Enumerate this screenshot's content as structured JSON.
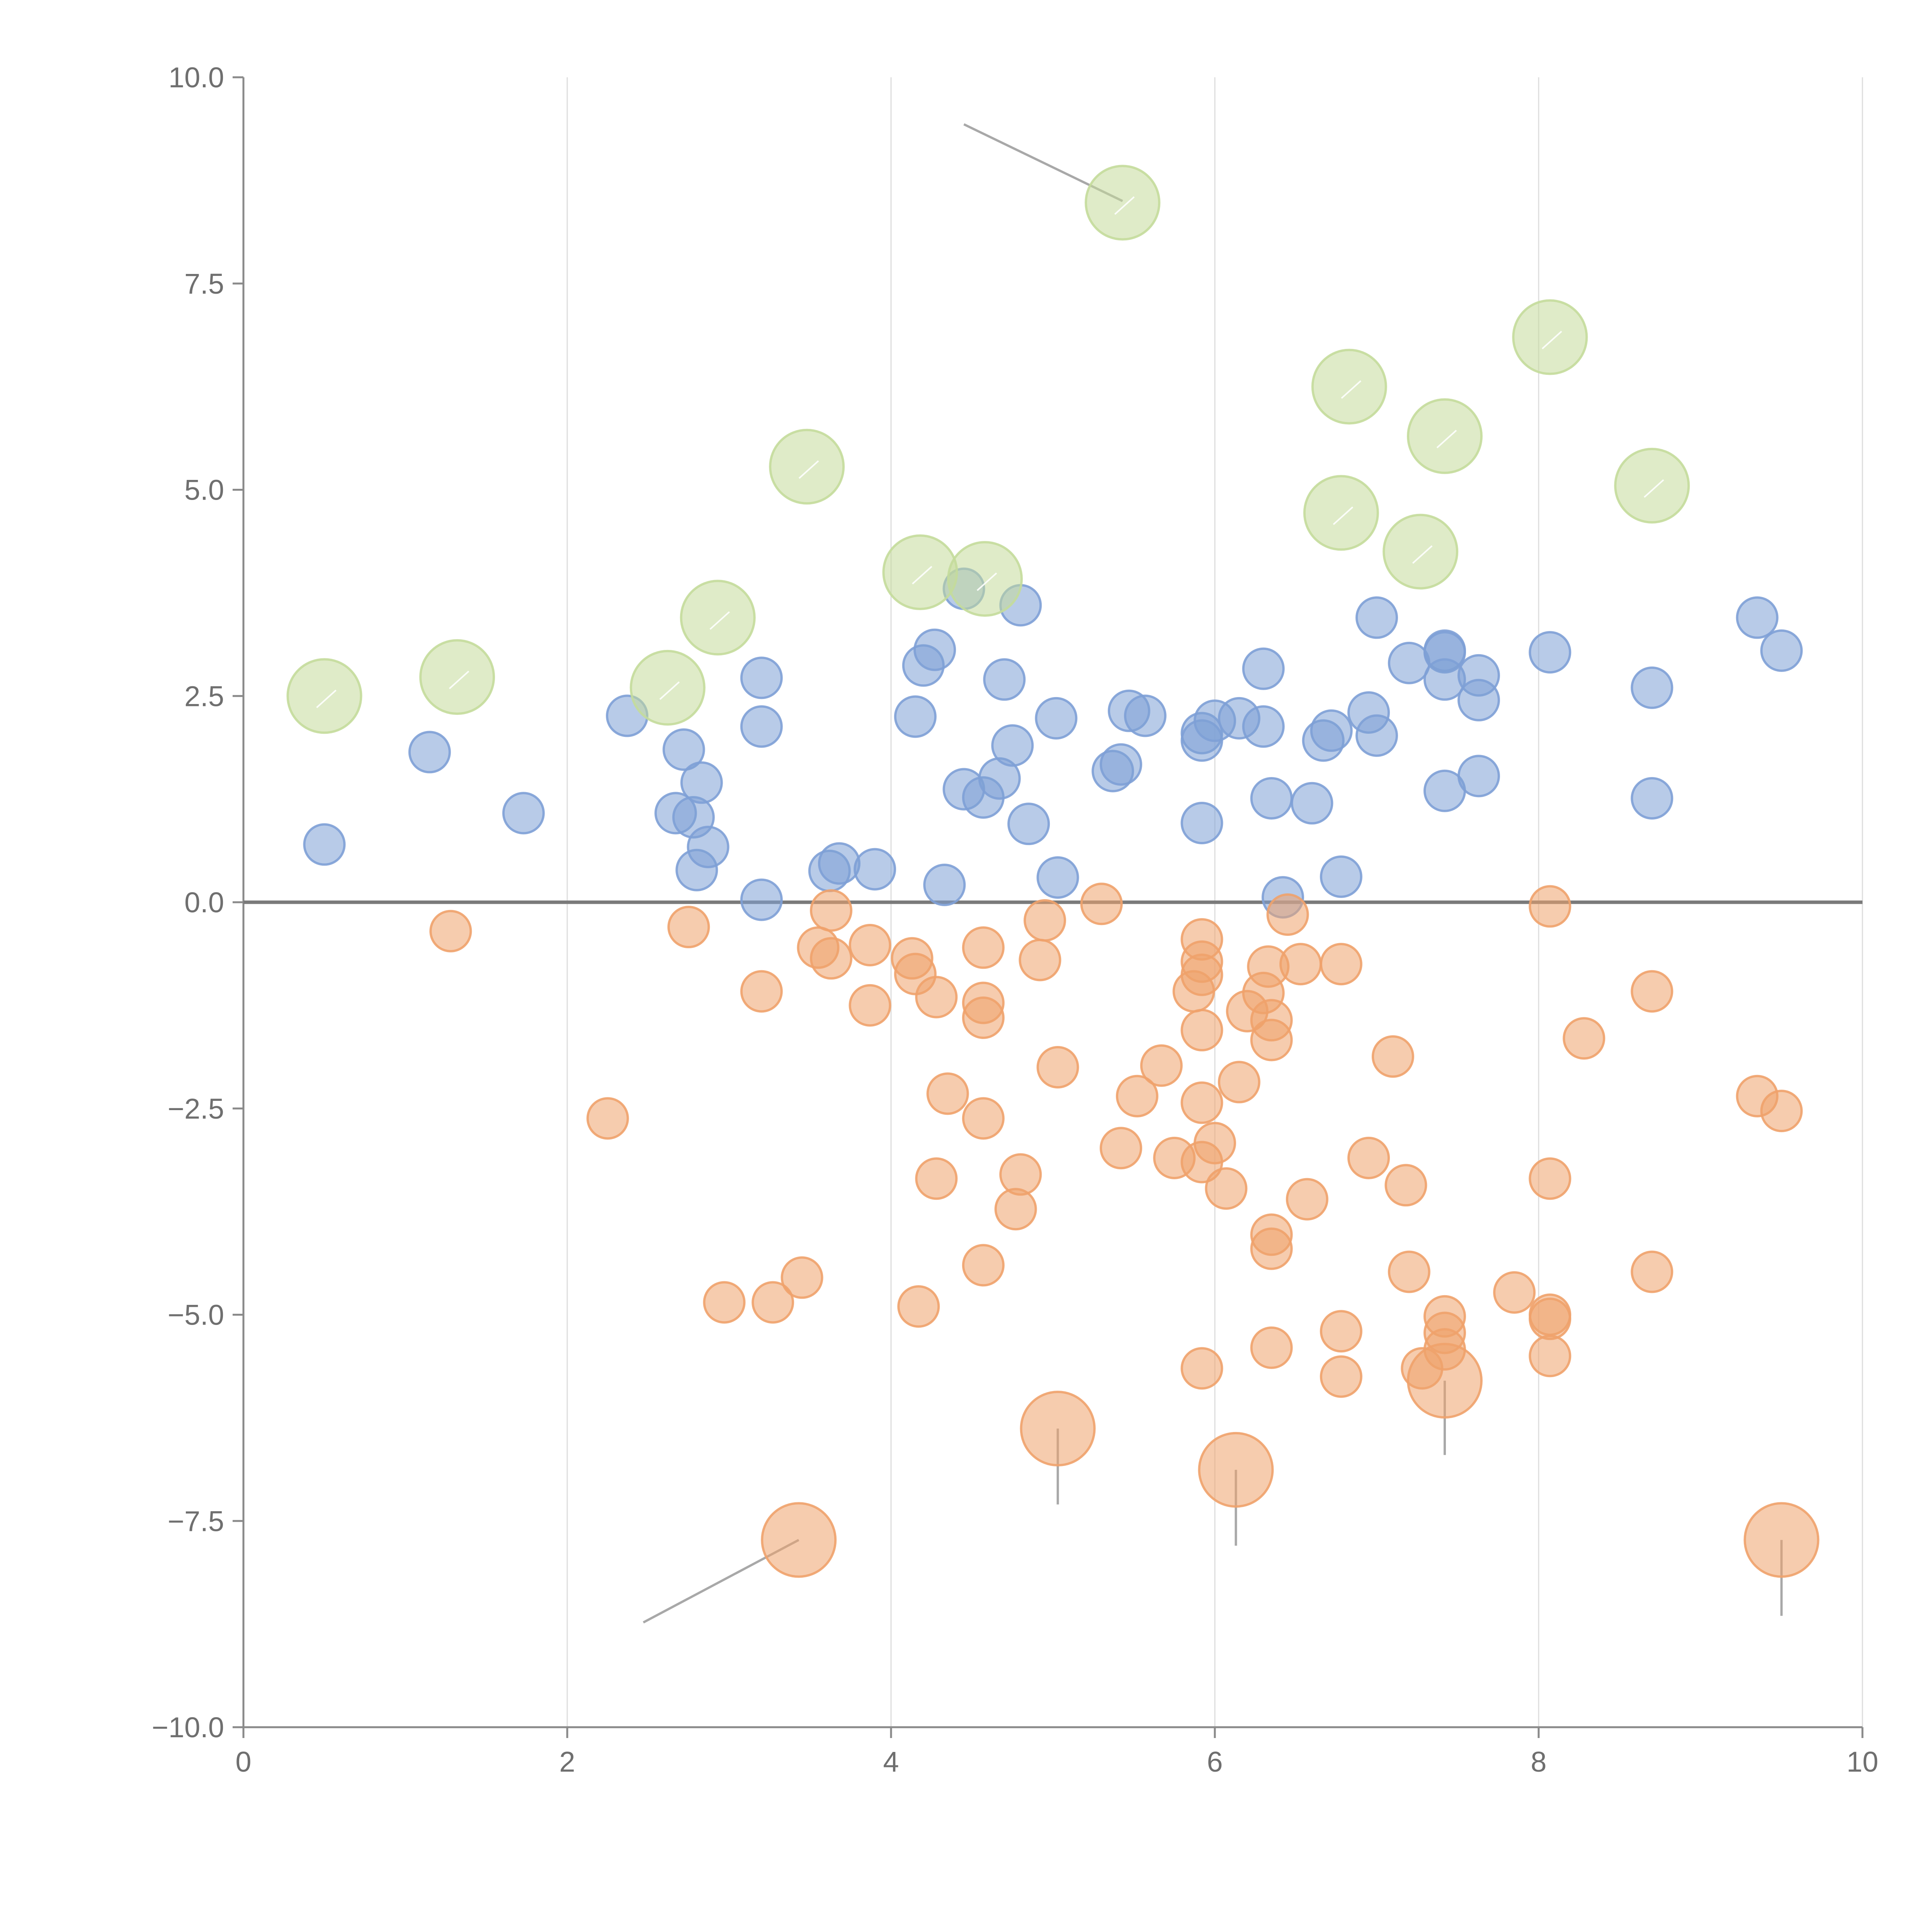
{
  "chart_data": {
    "type": "scatter",
    "title": "",
    "xlabel": "",
    "ylabel": "",
    "xlim": [
      0,
      10
    ],
    "ylim": [
      -10,
      10
    ],
    "x_ticks": [
      0,
      2,
      4,
      6,
      8,
      10
    ],
    "x_tick_labels": [
      "0",
      "2",
      "4",
      "6",
      "8",
      "10"
    ],
    "y_ticks": [
      -10,
      -7.5,
      -5,
      -2.5,
      0,
      2.5,
      5,
      7.5,
      10
    ],
    "y_tick_labels": [
      "−10.0",
      "−7.5",
      "−5.0",
      "−2.5",
      "0.0",
      "2.5",
      "5.0",
      "7.5",
      "10.0"
    ],
    "vertical_grid": true,
    "reference_line_y": 0,
    "series": [
      {
        "name": "blue",
        "color": "#7ea0d6",
        "marker_size": "small",
        "points": [
          [
            0.5,
            0.7
          ],
          [
            1.15,
            1.82
          ],
          [
            1.73,
            1.08
          ],
          [
            2.37,
            2.26
          ],
          [
            2.67,
            1.08
          ],
          [
            2.72,
            1.85
          ],
          [
            2.78,
            1.03
          ],
          [
            2.8,
            0.39
          ],
          [
            2.83,
            1.45
          ],
          [
            2.87,
            0.67
          ],
          [
            3.2,
            2.72
          ],
          [
            3.2,
            2.13
          ],
          [
            3.2,
            0.03
          ],
          [
            3.62,
            0.38
          ],
          [
            3.68,
            0.47
          ],
          [
            3.9,
            0.4
          ],
          [
            4.15,
            2.25
          ],
          [
            4.2,
            2.87
          ],
          [
            4.27,
            3.06
          ],
          [
            4.33,
            0.21
          ],
          [
            4.45,
            3.8
          ],
          [
            4.45,
            1.37
          ],
          [
            4.57,
            1.27
          ],
          [
            4.67,
            1.5
          ],
          [
            4.7,
            2.7
          ],
          [
            4.75,
            1.9
          ],
          [
            4.8,
            3.6
          ],
          [
            4.85,
            0.95
          ],
          [
            5.02,
            2.23
          ],
          [
            5.03,
            0.3
          ],
          [
            5.37,
            1.59
          ],
          [
            5.42,
            1.67
          ],
          [
            5.47,
            2.32
          ],
          [
            5.57,
            2.26
          ],
          [
            5.92,
            2.05
          ],
          [
            5.92,
            1.96
          ],
          [
            5.92,
            0.96
          ],
          [
            6.0,
            2.2
          ],
          [
            6.15,
            2.23
          ],
          [
            6.3,
            2.83
          ],
          [
            6.3,
            2.13
          ],
          [
            6.35,
            1.26
          ],
          [
            6.42,
            0.06
          ],
          [
            6.6,
            1.2
          ],
          [
            6.67,
            1.96
          ],
          [
            6.72,
            2.08
          ],
          [
            6.78,
            0.31
          ],
          [
            6.95,
            2.3
          ],
          [
            7.0,
            2.02
          ],
          [
            7.0,
            3.45
          ],
          [
            7.2,
            2.9
          ],
          [
            7.42,
            3.05
          ],
          [
            7.42,
            3.03
          ],
          [
            7.42,
            2.7
          ],
          [
            7.42,
            1.35
          ],
          [
            7.63,
            2.75
          ],
          [
            7.63,
            2.45
          ],
          [
            7.63,
            1.53
          ],
          [
            8.07,
            3.03
          ],
          [
            8.7,
            2.6
          ],
          [
            8.7,
            1.26
          ],
          [
            9.35,
            3.45
          ],
          [
            9.5,
            3.05
          ]
        ]
      },
      {
        "name": "orange",
        "color": "#efa26c",
        "marker_size": "small",
        "points": [
          [
            1.28,
            -0.35
          ],
          [
            2.25,
            -2.62
          ],
          [
            2.75,
            -0.3
          ],
          [
            2.97,
            -4.85
          ],
          [
            3.2,
            -1.08
          ],
          [
            3.27,
            -4.85
          ],
          [
            3.45,
            -4.55
          ],
          [
            3.55,
            -0.55
          ],
          [
            3.63,
            -0.68
          ],
          [
            3.63,
            -0.1
          ],
          [
            3.87,
            -0.52
          ],
          [
            3.87,
            -1.25
          ],
          [
            4.13,
            -0.68
          ],
          [
            4.15,
            -0.87
          ],
          [
            4.17,
            -4.9
          ],
          [
            4.28,
            -1.15
          ],
          [
            4.28,
            -3.35
          ],
          [
            4.35,
            -2.32
          ],
          [
            4.57,
            -0.55
          ],
          [
            4.57,
            -1.22
          ],
          [
            4.57,
            -1.4
          ],
          [
            4.57,
            -2.62
          ],
          [
            4.57,
            -4.4
          ],
          [
            4.77,
            -3.72
          ],
          [
            4.8,
            -3.3
          ],
          [
            4.92,
            -0.7
          ],
          [
            4.95,
            -0.22
          ],
          [
            5.03,
            -2.0
          ],
          [
            5.3,
            -0.02
          ],
          [
            5.42,
            -2.98
          ],
          [
            5.52,
            -2.35
          ],
          [
            5.67,
            -1.98
          ],
          [
            5.75,
            -3.1
          ],
          [
            5.87,
            -1.08
          ],
          [
            5.92,
            -0.45
          ],
          [
            5.92,
            -0.72
          ],
          [
            5.92,
            -0.88
          ],
          [
            5.92,
            -1.55
          ],
          [
            5.92,
            -2.43
          ],
          [
            5.92,
            -3.15
          ],
          [
            5.92,
            -5.65
          ],
          [
            6.0,
            -2.92
          ],
          [
            6.07,
            -3.47
          ],
          [
            6.15,
            -2.18
          ],
          [
            6.2,
            -1.32
          ],
          [
            6.3,
            -1.1
          ],
          [
            6.33,
            -0.78
          ],
          [
            6.35,
            -1.43
          ],
          [
            6.35,
            -1.67
          ],
          [
            6.35,
            -4.03
          ],
          [
            6.35,
            -4.2
          ],
          [
            6.35,
            -5.4
          ],
          [
            6.45,
            -0.15
          ],
          [
            6.53,
            -0.75
          ],
          [
            6.57,
            -3.6
          ],
          [
            6.78,
            -0.75
          ],
          [
            6.78,
            -5.2
          ],
          [
            6.78,
            -5.75
          ],
          [
            6.95,
            -3.1
          ],
          [
            7.1,
            -1.87
          ],
          [
            7.18,
            -3.43
          ],
          [
            7.2,
            -4.48
          ],
          [
            7.28,
            -5.65
          ],
          [
            7.42,
            -5.02
          ],
          [
            7.42,
            -5.22
          ],
          [
            7.42,
            -5.42
          ],
          [
            7.85,
            -4.73
          ],
          [
            8.07,
            -0.05
          ],
          [
            8.07,
            -3.35
          ],
          [
            8.07,
            -5.0
          ],
          [
            8.07,
            -5.05
          ],
          [
            8.07,
            -5.5
          ],
          [
            8.28,
            -1.65
          ],
          [
            8.7,
            -1.08
          ],
          [
            8.7,
            -4.48
          ],
          [
            9.35,
            -2.35
          ],
          [
            9.5,
            -2.53
          ]
        ]
      },
      {
        "name": "green",
        "color": "#c4db9b",
        "marker_size": "large",
        "points": [
          [
            0.5,
            2.5
          ],
          [
            1.32,
            2.73
          ],
          [
            2.62,
            2.6
          ],
          [
            2.93,
            3.45
          ],
          [
            3.48,
            5.28
          ],
          [
            4.18,
            4.0
          ],
          [
            4.58,
            3.92
          ],
          [
            5.43,
            8.48
          ],
          [
            6.78,
            4.72
          ],
          [
            6.83,
            6.25
          ],
          [
            7.27,
            4.25
          ],
          [
            7.42,
            5.65
          ],
          [
            8.07,
            6.85
          ],
          [
            8.7,
            5.05
          ]
        ]
      },
      {
        "name": "orange-large",
        "color": "#efa26c",
        "marker_size": "large",
        "points": [
          [
            3.43,
            -7.73
          ],
          [
            5.03,
            -6.38
          ],
          [
            6.13,
            -6.88
          ],
          [
            7.42,
            -5.8
          ],
          [
            9.5,
            -7.73
          ]
        ]
      }
    ],
    "annotation_leaders": [
      {
        "from": [
          5.43,
          8.5
        ],
        "to": [
          4.45,
          9.43
        ]
      },
      {
        "from": [
          3.43,
          -7.73
        ],
        "to": [
          2.47,
          -8.73
        ]
      },
      {
        "from": [
          5.03,
          -6.38
        ],
        "to": [
          5.03,
          -7.3
        ]
      },
      {
        "from": [
          6.13,
          -6.88
        ],
        "to": [
          6.13,
          -7.8
        ]
      },
      {
        "from": [
          7.42,
          -5.8
        ],
        "to": [
          7.42,
          -6.7
        ]
      },
      {
        "from": [
          9.5,
          -7.73
        ],
        "to": [
          9.5,
          -8.65
        ]
      }
    ]
  }
}
